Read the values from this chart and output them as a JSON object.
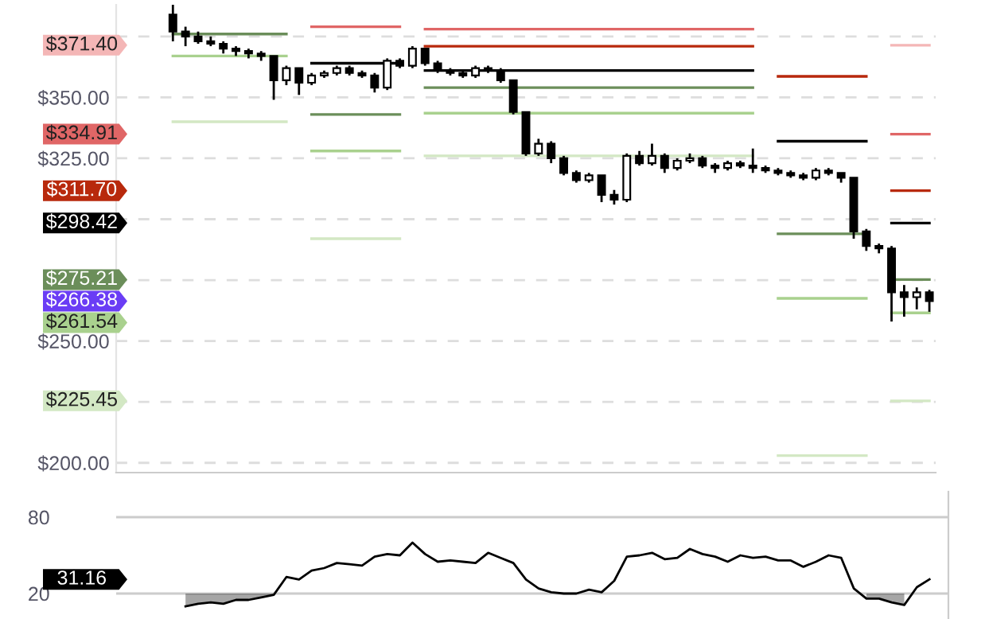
{
  "chart_data": [
    {
      "type": "candlestick",
      "color": "#000000",
      "categories": [
        null,
        null,
        null,
        null,
        null,
        null,
        null,
        null,
        null,
        null,
        null,
        null,
        null,
        null,
        null,
        null,
        null,
        null,
        null,
        null,
        null,
        null,
        null,
        null,
        null,
        null,
        null,
        null,
        null,
        null,
        null,
        null,
        null,
        null,
        null,
        null,
        null,
        null,
        null,
        null,
        null,
        null,
        null,
        null,
        null,
        null,
        null,
        null,
        null,
        null,
        null,
        null,
        null,
        null,
        null,
        null,
        null,
        null,
        null,
        null,
        null
      ],
      "ohlc": [
        [
          384,
          388,
          373,
          377
        ],
        [
          377,
          379,
          371,
          375
        ],
        [
          375,
          377,
          372,
          373
        ],
        [
          373,
          375,
          371,
          372
        ],
        [
          372,
          373,
          368,
          370
        ],
        [
          370,
          371,
          367,
          369
        ],
        [
          369,
          370,
          366,
          368
        ],
        [
          368,
          369,
          365,
          367
        ],
        [
          367,
          367,
          349,
          357
        ],
        [
          357,
          363,
          355,
          362
        ],
        [
          362,
          362,
          351,
          356
        ],
        [
          356,
          360,
          355,
          359
        ],
        [
          359,
          361,
          358,
          360
        ],
        [
          360,
          363,
          359,
          362
        ],
        [
          362,
          363,
          359,
          360
        ],
        [
          360,
          361,
          358,
          359
        ],
        [
          359,
          360,
          352,
          354
        ],
        [
          354,
          366,
          353,
          365
        ],
        [
          365,
          366,
          362,
          363
        ],
        [
          363,
          371,
          362,
          370
        ],
        [
          370,
          370,
          363,
          364
        ],
        [
          364,
          365,
          360,
          361
        ],
        [
          361,
          362,
          359,
          360
        ],
        [
          360,
          361,
          358,
          359
        ],
        [
          359,
          363,
          358,
          362
        ],
        [
          362,
          363,
          360,
          361
        ],
        [
          361,
          362,
          356,
          357
        ],
        [
          357,
          357,
          343,
          344
        ],
        [
          344,
          344,
          326,
          327
        ],
        [
          327,
          333,
          326,
          331
        ],
        [
          331,
          332,
          323,
          325
        ],
        [
          325,
          326,
          318,
          319
        ],
        [
          319,
          320,
          315,
          316
        ],
        [
          316,
          319,
          315,
          318
        ],
        [
          318,
          318,
          307,
          310
        ],
        [
          310,
          312,
          306,
          308
        ],
        [
          308,
          327,
          307,
          326
        ],
        [
          326,
          328,
          322,
          323
        ],
        [
          323,
          331,
          322,
          326
        ],
        [
          326,
          327,
          319,
          321
        ],
        [
          321,
          325,
          320,
          324
        ],
        [
          324,
          327,
          323,
          325
        ],
        [
          325,
          326,
          321,
          322
        ],
        [
          322,
          323,
          319,
          321
        ],
        [
          321,
          324,
          320,
          323
        ],
        [
          323,
          324,
          321,
          322
        ],
        [
          322,
          329,
          319,
          321
        ],
        [
          321,
          322,
          319,
          320
        ],
        [
          320,
          321,
          318,
          319
        ],
        [
          319,
          320,
          317,
          318
        ],
        [
          318,
          319,
          316,
          317
        ],
        [
          317,
          321,
          316,
          320
        ],
        [
          320,
          321,
          318,
          319
        ],
        [
          319,
          319,
          315,
          317
        ],
        [
          317,
          317,
          292,
          295
        ],
        [
          295,
          296,
          287,
          289
        ],
        [
          289,
          290,
          286,
          288
        ],
        [
          288,
          289,
          258,
          270
        ],
        [
          270,
          273,
          260,
          268
        ],
        [
          268,
          272,
          263,
          270
        ],
        [
          270,
          271,
          262,
          266.38
        ]
      ],
      "series": [
        {
          "type": "line",
          "color": "#f4b6b6",
          "values": [
            null,
            null,
            null,
            null,
            null,
            null,
            null,
            null,
            null,
            null,
            null,
            null,
            null,
            null,
            null,
            null,
            null,
            null,
            null,
            null,
            null,
            null,
            null,
            null,
            null,
            null,
            null,
            null,
            null,
            null,
            null,
            null,
            null,
            null,
            null,
            null,
            null,
            null,
            null,
            null,
            null,
            null,
            null,
            null,
            null,
            null,
            null,
            null,
            null,
            null,
            null,
            null,
            null,
            null,
            null,
            null,
            null,
            371.4,
            371.4,
            371.4,
            371.4
          ]
        },
        {
          "type": "line",
          "color": "#e06666",
          "values": [
            null,
            null,
            null,
            null,
            null,
            null,
            null,
            null,
            null,
            null,
            null,
            379,
            379,
            379,
            379,
            379,
            379,
            379,
            379,
            null,
            378,
            378,
            378,
            378,
            378,
            378,
            378,
            378,
            378,
            378,
            378,
            378,
            378,
            378,
            378,
            378,
            378,
            378,
            378,
            378,
            378,
            378,
            378,
            378,
            378,
            378,
            378,
            null,
            null,
            null,
            null,
            null,
            null,
            null,
            null,
            null,
            null,
            334.91,
            334.91,
            334.91,
            334.91
          ]
        },
        {
          "type": "line",
          "color": "#b8290c",
          "values": [
            null,
            null,
            null,
            null,
            null,
            null,
            null,
            null,
            null,
            null,
            null,
            null,
            null,
            null,
            null,
            null,
            null,
            null,
            null,
            null,
            371,
            371,
            371,
            371,
            371,
            371,
            371,
            371,
            371,
            371,
            371,
            371,
            371,
            371,
            371,
            371,
            371,
            371,
            371,
            371,
            371,
            371,
            371,
            371,
            371,
            371,
            371,
            null,
            358.6,
            358.6,
            358.6,
            358.6,
            358.6,
            358.6,
            358.6,
            358.6,
            null,
            311.7,
            311.7,
            311.7,
            311.7
          ]
        },
        {
          "type": "line",
          "color": "#000000",
          "values": [
            null,
            null,
            null,
            null,
            null,
            null,
            null,
            null,
            null,
            null,
            null,
            364,
            364,
            364,
            364,
            364,
            364,
            364,
            364,
            null,
            361,
            361,
            361,
            361,
            361,
            361,
            361,
            361,
            361,
            361,
            361,
            361,
            361,
            361,
            361,
            361,
            361,
            361,
            361,
            361,
            361,
            361,
            361,
            361,
            361,
            361,
            361,
            null,
            332,
            332,
            332,
            332,
            332,
            332,
            332,
            332,
            null,
            298.42,
            298.42,
            298.42,
            298.42
          ]
        },
        {
          "type": "line",
          "color": "#6b8e5a",
          "values": [
            376,
            376,
            376,
            376,
            376,
            376,
            376,
            376,
            376,
            376,
            null,
            343,
            343,
            343,
            343,
            343,
            343,
            343,
            343,
            null,
            354,
            354,
            354,
            354,
            354,
            354,
            354,
            354,
            354,
            354,
            354,
            354,
            354,
            354,
            354,
            354,
            354,
            354,
            354,
            354,
            354,
            354,
            354,
            354,
            354,
            354,
            354,
            null,
            294,
            294,
            294,
            294,
            294,
            294,
            294,
            294,
            null,
            275.21,
            275.21,
            275.21,
            275.21
          ]
        },
        {
          "type": "line",
          "color": "#a9d18e",
          "values": [
            367,
            367,
            367,
            367,
            367,
            367,
            367,
            367,
            367,
            367,
            null,
            328,
            328,
            328,
            328,
            328,
            328,
            328,
            328,
            null,
            343.5,
            343.5,
            343.5,
            343.5,
            343.5,
            343.5,
            343.5,
            343.5,
            343.5,
            343.5,
            343.5,
            343.5,
            343.5,
            343.5,
            343.5,
            343.5,
            343.5,
            343.5,
            343.5,
            343.5,
            343.5,
            343.5,
            343.5,
            343.5,
            343.5,
            343.5,
            343.5,
            null,
            267.5,
            267.5,
            267.5,
            267.5,
            267.5,
            267.5,
            267.5,
            267.5,
            null,
            261.54,
            261.54,
            261.54,
            261.54
          ]
        },
        {
          "type": "line",
          "color": "#d3e8c4",
          "values": [
            340,
            340,
            340,
            340,
            340,
            340,
            340,
            340,
            340,
            340,
            null,
            292,
            292,
            292,
            292,
            292,
            292,
            292,
            292,
            null,
            326,
            326,
            326,
            326,
            326,
            326,
            326,
            326,
            326,
            326,
            326,
            326,
            326,
            326,
            326,
            326,
            326,
            326,
            326,
            326,
            326,
            326,
            326,
            326,
            326,
            326,
            326,
            null,
            203,
            203,
            203,
            203,
            203,
            203,
            203,
            203,
            null,
            225.45,
            225.45,
            225.45,
            225.45
          ]
        }
      ],
      "annotations": [
        "$371.40",
        "$334.91",
        "$311.70",
        "$298.42",
        "$275.21",
        "$261.54",
        "$225.45",
        "$266.38"
      ],
      "ylim": [
        196,
        388
      ],
      "yticks": [
        {
          "value": 200,
          "label": "$200.00"
        },
        {
          "value": 225,
          "label": null
        },
        {
          "value": 250,
          "label": "$250.00"
        },
        {
          "value": 275,
          "label": null
        },
        {
          "value": 300,
          "label": null
        },
        {
          "value": 325,
          "label": "$325.00"
        },
        {
          "value": 350,
          "label": "$350.00"
        },
        {
          "value": 375,
          "label": null
        }
      ],
      "grid": "y",
      "tick_labels": "y"
    },
    {
      "type": "line",
      "categories": [
        null,
        null,
        null,
        null,
        null,
        null,
        null,
        null,
        null,
        null,
        null,
        null,
        null,
        null,
        null,
        null,
        null,
        null,
        null,
        null,
        null,
        null,
        null,
        null,
        null,
        null,
        null,
        null,
        null,
        null,
        null,
        null,
        null,
        null,
        null,
        null,
        null,
        null,
        null,
        null,
        null,
        null,
        null,
        null,
        null,
        null,
        null,
        null,
        null,
        null,
        null,
        null,
        null,
        null,
        null,
        null,
        null,
        null,
        null,
        null,
        null
      ],
      "series": [
        {
          "color": "#000000",
          "values": [
            null,
            10,
            12,
            13,
            12,
            15,
            15,
            17,
            19,
            33,
            31,
            38,
            40,
            44,
            43,
            42,
            49,
            51,
            50,
            60,
            51,
            45,
            46,
            45,
            44,
            52,
            48,
            44,
            31,
            24,
            21,
            20,
            20,
            23,
            21,
            30,
            49,
            50,
            52,
            47,
            48,
            55,
            51,
            49,
            45,
            50,
            48,
            49,
            46,
            46,
            41,
            45,
            50,
            48,
            24,
            16,
            16,
            13,
            11,
            25,
            31.16
          ],
          "lower": [
            null,
            10,
            12,
            13,
            12,
            15,
            15,
            17,
            19,
            null,
            null,
            null,
            null,
            null,
            null,
            null,
            null,
            null,
            null,
            null,
            null,
            null,
            null,
            null,
            null,
            null,
            null,
            null,
            null,
            null,
            null,
            null,
            null,
            null,
            null,
            null,
            null,
            null,
            null,
            null,
            null,
            null,
            null,
            null,
            null,
            null,
            null,
            null,
            null,
            null,
            null,
            null,
            null,
            null,
            null,
            16,
            16,
            13,
            11,
            null,
            null
          ],
          "upper": [
            null,
            20,
            20,
            20,
            20,
            20,
            20,
            20,
            20,
            null,
            null,
            null,
            null,
            null,
            null,
            null,
            null,
            null,
            null,
            null,
            null,
            null,
            null,
            null,
            null,
            null,
            null,
            null,
            null,
            null,
            null,
            null,
            null,
            null,
            null,
            null,
            null,
            null,
            null,
            null,
            null,
            null,
            null,
            null,
            null,
            null,
            null,
            null,
            null,
            null,
            null,
            null,
            null,
            null,
            null,
            20,
            20,
            20,
            20,
            null,
            null
          ]
        }
      ],
      "annotations": [
        "31.16"
      ],
      "ylim": [
        0,
        100
      ],
      "yticks": [
        20,
        80
      ],
      "grid": "y",
      "tick_labels": "y"
    }
  ]
}
